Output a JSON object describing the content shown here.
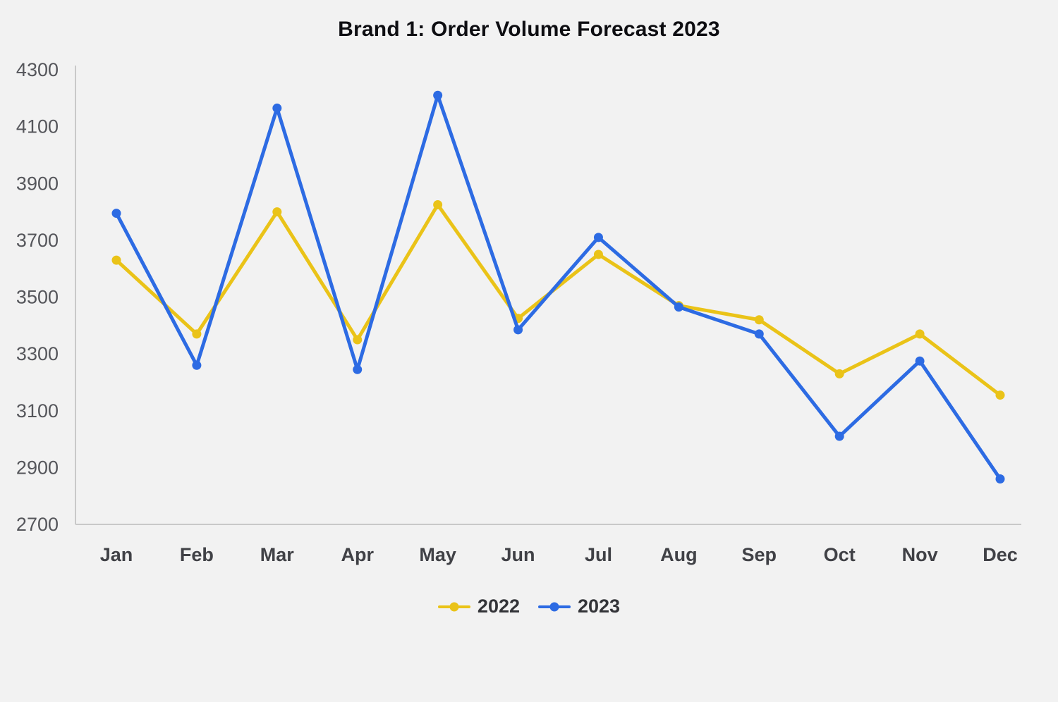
{
  "page": {
    "background": "#f2f2f2"
  },
  "chart_data": {
    "type": "line",
    "title": "Brand 1: Order Volume Forecast 2023",
    "categories": [
      "Jan",
      "Feb",
      "Mar",
      "Apr",
      "May",
      "Jun",
      "Jul",
      "Aug",
      "Sep",
      "Oct",
      "Nov",
      "Dec"
    ],
    "series": [
      {
        "name": "2022",
        "color": "#EAC318",
        "values": [
          3630,
          3370,
          3800,
          3350,
          3825,
          3425,
          3650,
          3470,
          3420,
          3230,
          3370,
          3155
        ]
      },
      {
        "name": "2023",
        "color": "#2D6BE3",
        "values": [
          3795,
          3260,
          4165,
          3245,
          4210,
          3385,
          3710,
          3465,
          3370,
          3010,
          3275,
          2860
        ]
      }
    ],
    "xlabel": "",
    "ylabel": "",
    "ylim": [
      2700,
      4300
    ],
    "ytick_step": 200,
    "grid": false,
    "legend_position": "bottom",
    "axis_color": "#c9c9c9",
    "tick_label_color": "#55565b",
    "x_label_color": "#404146",
    "title_color": "#0e0e12"
  }
}
